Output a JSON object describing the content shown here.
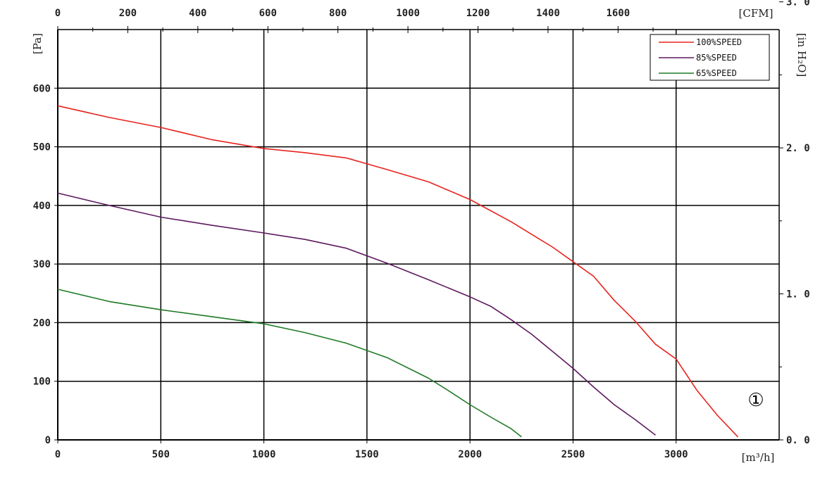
{
  "chart_data": {
    "type": "line",
    "title": "",
    "x": {
      "label": "[m³/h]",
      "lim": [
        0,
        3500
      ],
      "ticks": [
        0,
        500,
        1000,
        1500,
        2000,
        2500,
        3000
      ],
      "tick_labels": [
        "0",
        "500",
        "1000",
        "1500",
        "2000",
        "2500",
        "3000"
      ]
    },
    "y": {
      "label": "[Pa]",
      "lim": [
        0,
        700
      ],
      "ticks": [
        0,
        100,
        200,
        300,
        400,
        500,
        600
      ],
      "tick_labels": [
        "0",
        "100",
        "200",
        "300",
        "400",
        "500",
        "600"
      ]
    },
    "x_secondary": {
      "label": "[CFM]",
      "ticks": [
        0,
        200,
        400,
        600,
        800,
        1000,
        1200,
        1400,
        1600
      ],
      "tick_labels": [
        "0",
        "200",
        "400",
        "600",
        "800",
        "1000",
        "1200",
        "1400",
        "1600"
      ]
    },
    "y_secondary": {
      "label": "[in H₂O]",
      "ticks": [
        0,
        1.0,
        2.0,
        3.0
      ],
      "tick_labels": [
        "0. 0",
        "1. 0",
        "2. 0",
        "3. 0"
      ]
    },
    "grid": true,
    "legend_position": "top-right",
    "annotation": "①",
    "series": [
      {
        "name": "100%SPEED",
        "color": "#e8231d",
        "points": [
          [
            0,
            570
          ],
          [
            250,
            550
          ],
          [
            500,
            533
          ],
          [
            750,
            512
          ],
          [
            1000,
            497
          ],
          [
            1200,
            490
          ],
          [
            1400,
            481
          ],
          [
            1600,
            461
          ],
          [
            1800,
            440
          ],
          [
            2000,
            410
          ],
          [
            2200,
            372
          ],
          [
            2400,
            329
          ],
          [
            2500,
            304
          ],
          [
            2600,
            279
          ],
          [
            2700,
            238
          ],
          [
            2800,
            203
          ],
          [
            2900,
            163
          ],
          [
            3000,
            138
          ],
          [
            3100,
            85
          ],
          [
            3200,
            42
          ],
          [
            3300,
            5
          ]
        ]
      },
      {
        "name": "85%SPEED",
        "color": "#5c1a5e",
        "points": [
          [
            0,
            421
          ],
          [
            250,
            400
          ],
          [
            500,
            380
          ],
          [
            750,
            366
          ],
          [
            1000,
            353
          ],
          [
            1200,
            342
          ],
          [
            1400,
            327
          ],
          [
            1600,
            301
          ],
          [
            1800,
            273
          ],
          [
            2000,
            244
          ],
          [
            2100,
            228
          ],
          [
            2200,
            205
          ],
          [
            2300,
            180
          ],
          [
            2400,
            151
          ],
          [
            2500,
            122
          ],
          [
            2600,
            90
          ],
          [
            2700,
            60
          ],
          [
            2800,
            35
          ],
          [
            2900,
            8
          ]
        ]
      },
      {
        "name": "65%SPEED",
        "color": "#1f7a25",
        "points": [
          [
            0,
            257
          ],
          [
            250,
            236
          ],
          [
            500,
            222
          ],
          [
            750,
            210
          ],
          [
            1000,
            198
          ],
          [
            1200,
            183
          ],
          [
            1400,
            165
          ],
          [
            1600,
            140
          ],
          [
            1800,
            105
          ],
          [
            1900,
            83
          ],
          [
            2000,
            60
          ],
          [
            2100,
            39
          ],
          [
            2200,
            19
          ],
          [
            2250,
            5
          ]
        ]
      }
    ]
  }
}
